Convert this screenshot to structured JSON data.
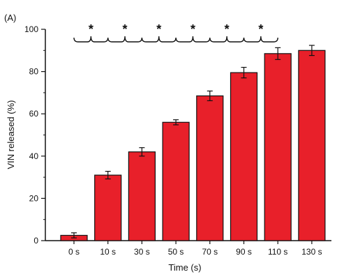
{
  "panel_label": "(A)",
  "chart_data": {
    "type": "bar",
    "categories": [
      "0 s",
      "10 s",
      "30 s",
      "50 s",
      "70 s",
      "90 s",
      "110 s",
      "130 s"
    ],
    "values": [
      2.5,
      31,
      42,
      56,
      68.5,
      79.5,
      88.5,
      90
    ],
    "errors": [
      1.2,
      1.8,
      2.0,
      1.2,
      2.3,
      2.5,
      2.8,
      2.4
    ],
    "xlabel": "Time (s)",
    "ylabel": "VIN released (%)",
    "ylim": [
      0,
      100
    ],
    "yticks": [
      0,
      20,
      40,
      60,
      80,
      100
    ],
    "bar_color": "#e8202a",
    "significance": [
      {
        "from": "0 s",
        "to": "10 s",
        "label": "*"
      },
      {
        "from": "10 s",
        "to": "30 s",
        "label": "*"
      },
      {
        "from": "30 s",
        "to": "50 s",
        "label": "*"
      },
      {
        "from": "50 s",
        "to": "70 s",
        "label": "*"
      },
      {
        "from": "70 s",
        "to": "90 s",
        "label": "*"
      },
      {
        "from": "90 s",
        "to": "110 s",
        "label": "*"
      }
    ]
  }
}
